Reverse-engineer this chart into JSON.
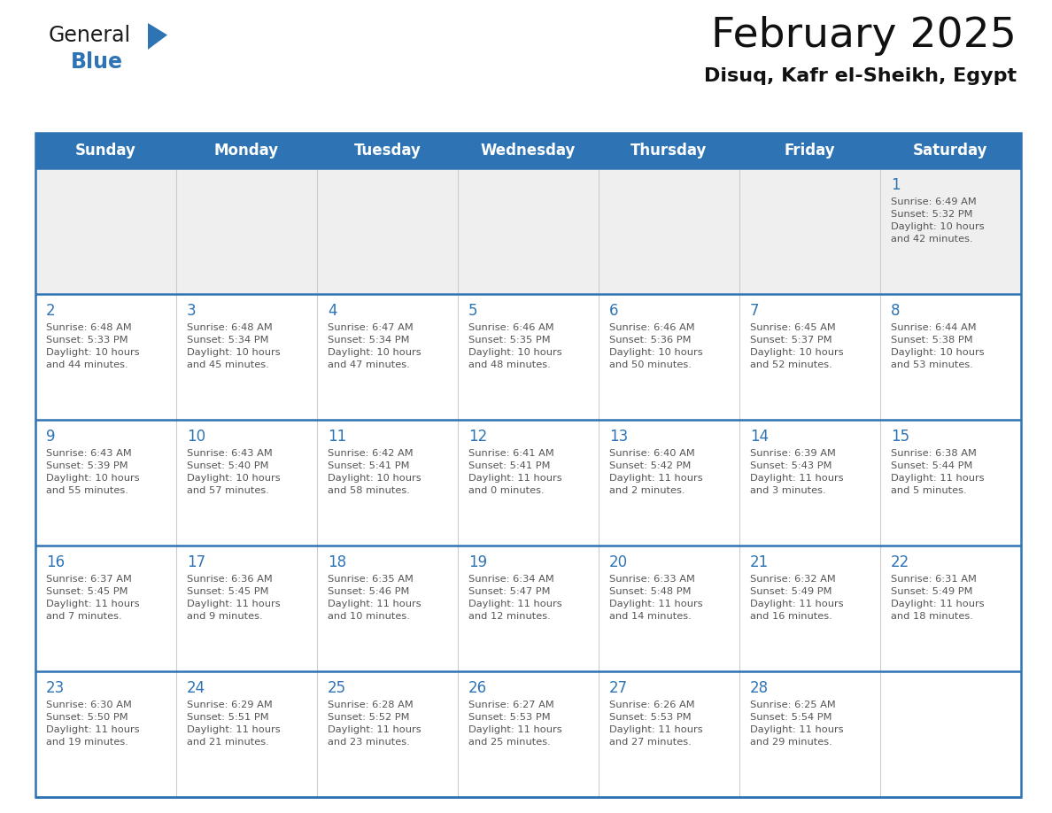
{
  "title": "February 2025",
  "subtitle": "Disuq, Kafr el-Sheikh, Egypt",
  "header_bg": "#2E74B5",
  "header_text_color": "#FFFFFF",
  "row1_bg": "#EFEFEF",
  "cell_bg": "#FFFFFF",
  "border_color": "#2E74B5",
  "day_number_color": "#2E74B5",
  "cell_text_color": "#555555",
  "days_of_week": [
    "Sunday",
    "Monday",
    "Tuesday",
    "Wednesday",
    "Thursday",
    "Friday",
    "Saturday"
  ],
  "weeks": [
    [
      {
        "day": "",
        "info": ""
      },
      {
        "day": "",
        "info": ""
      },
      {
        "day": "",
        "info": ""
      },
      {
        "day": "",
        "info": ""
      },
      {
        "day": "",
        "info": ""
      },
      {
        "day": "",
        "info": ""
      },
      {
        "day": "1",
        "info": "Sunrise: 6:49 AM\nSunset: 5:32 PM\nDaylight: 10 hours\nand 42 minutes."
      }
    ],
    [
      {
        "day": "2",
        "info": "Sunrise: 6:48 AM\nSunset: 5:33 PM\nDaylight: 10 hours\nand 44 minutes."
      },
      {
        "day": "3",
        "info": "Sunrise: 6:48 AM\nSunset: 5:34 PM\nDaylight: 10 hours\nand 45 minutes."
      },
      {
        "day": "4",
        "info": "Sunrise: 6:47 AM\nSunset: 5:34 PM\nDaylight: 10 hours\nand 47 minutes."
      },
      {
        "day": "5",
        "info": "Sunrise: 6:46 AM\nSunset: 5:35 PM\nDaylight: 10 hours\nand 48 minutes."
      },
      {
        "day": "6",
        "info": "Sunrise: 6:46 AM\nSunset: 5:36 PM\nDaylight: 10 hours\nand 50 minutes."
      },
      {
        "day": "7",
        "info": "Sunrise: 6:45 AM\nSunset: 5:37 PM\nDaylight: 10 hours\nand 52 minutes."
      },
      {
        "day": "8",
        "info": "Sunrise: 6:44 AM\nSunset: 5:38 PM\nDaylight: 10 hours\nand 53 minutes."
      }
    ],
    [
      {
        "day": "9",
        "info": "Sunrise: 6:43 AM\nSunset: 5:39 PM\nDaylight: 10 hours\nand 55 minutes."
      },
      {
        "day": "10",
        "info": "Sunrise: 6:43 AM\nSunset: 5:40 PM\nDaylight: 10 hours\nand 57 minutes."
      },
      {
        "day": "11",
        "info": "Sunrise: 6:42 AM\nSunset: 5:41 PM\nDaylight: 10 hours\nand 58 minutes."
      },
      {
        "day": "12",
        "info": "Sunrise: 6:41 AM\nSunset: 5:41 PM\nDaylight: 11 hours\nand 0 minutes."
      },
      {
        "day": "13",
        "info": "Sunrise: 6:40 AM\nSunset: 5:42 PM\nDaylight: 11 hours\nand 2 minutes."
      },
      {
        "day": "14",
        "info": "Sunrise: 6:39 AM\nSunset: 5:43 PM\nDaylight: 11 hours\nand 3 minutes."
      },
      {
        "day": "15",
        "info": "Sunrise: 6:38 AM\nSunset: 5:44 PM\nDaylight: 11 hours\nand 5 minutes."
      }
    ],
    [
      {
        "day": "16",
        "info": "Sunrise: 6:37 AM\nSunset: 5:45 PM\nDaylight: 11 hours\nand 7 minutes."
      },
      {
        "day": "17",
        "info": "Sunrise: 6:36 AM\nSunset: 5:45 PM\nDaylight: 11 hours\nand 9 minutes."
      },
      {
        "day": "18",
        "info": "Sunrise: 6:35 AM\nSunset: 5:46 PM\nDaylight: 11 hours\nand 10 minutes."
      },
      {
        "day": "19",
        "info": "Sunrise: 6:34 AM\nSunset: 5:47 PM\nDaylight: 11 hours\nand 12 minutes."
      },
      {
        "day": "20",
        "info": "Sunrise: 6:33 AM\nSunset: 5:48 PM\nDaylight: 11 hours\nand 14 minutes."
      },
      {
        "day": "21",
        "info": "Sunrise: 6:32 AM\nSunset: 5:49 PM\nDaylight: 11 hours\nand 16 minutes."
      },
      {
        "day": "22",
        "info": "Sunrise: 6:31 AM\nSunset: 5:49 PM\nDaylight: 11 hours\nand 18 minutes."
      }
    ],
    [
      {
        "day": "23",
        "info": "Sunrise: 6:30 AM\nSunset: 5:50 PM\nDaylight: 11 hours\nand 19 minutes."
      },
      {
        "day": "24",
        "info": "Sunrise: 6:29 AM\nSunset: 5:51 PM\nDaylight: 11 hours\nand 21 minutes."
      },
      {
        "day": "25",
        "info": "Sunrise: 6:28 AM\nSunset: 5:52 PM\nDaylight: 11 hours\nand 23 minutes."
      },
      {
        "day": "26",
        "info": "Sunrise: 6:27 AM\nSunset: 5:53 PM\nDaylight: 11 hours\nand 25 minutes."
      },
      {
        "day": "27",
        "info": "Sunrise: 6:26 AM\nSunset: 5:53 PM\nDaylight: 11 hours\nand 27 minutes."
      },
      {
        "day": "28",
        "info": "Sunrise: 6:25 AM\nSunset: 5:54 PM\nDaylight: 11 hours\nand 29 minutes."
      },
      {
        "day": "",
        "info": ""
      }
    ]
  ],
  "logo_general_color": "#1a1a1a",
  "logo_blue_color": "#2E74B5",
  "logo_triangle_color": "#2E74B5"
}
